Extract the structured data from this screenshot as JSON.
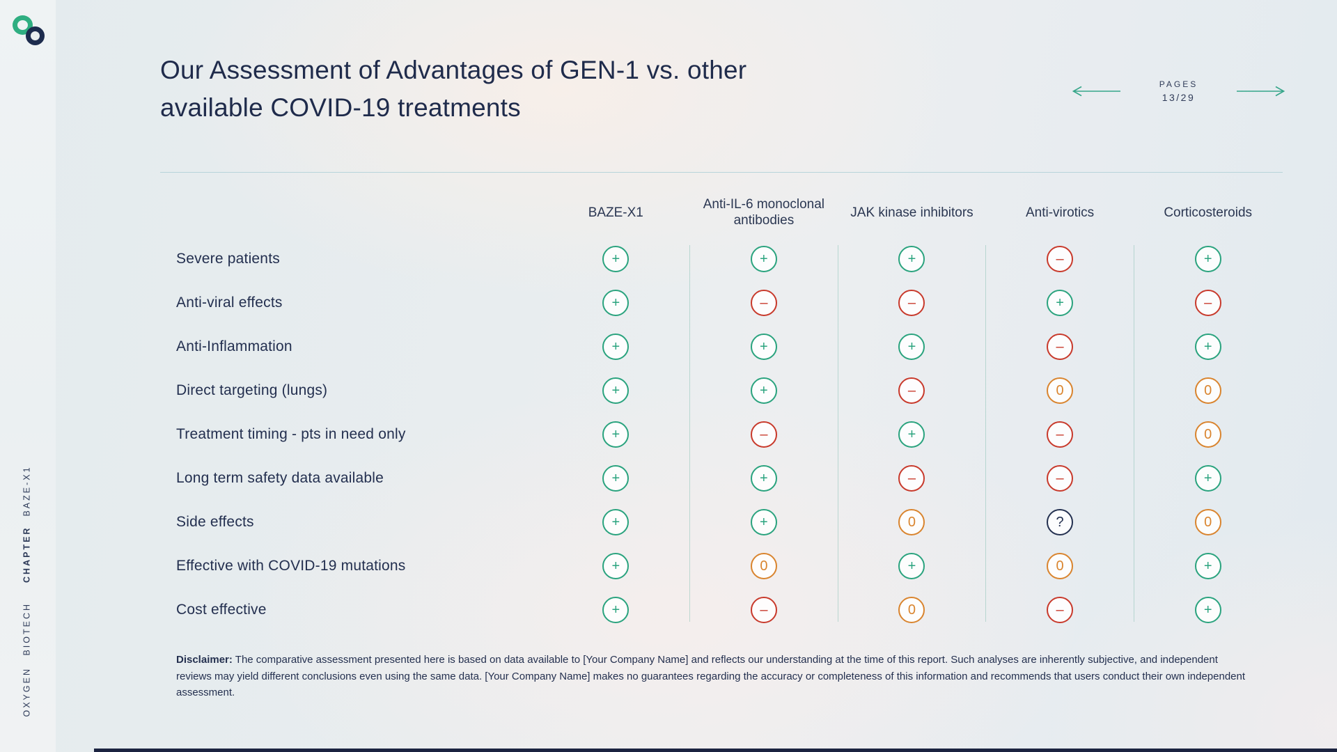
{
  "header": {
    "title_line1": "Our Assessment of Advantages of GEN-1 vs. other",
    "title_line2": "available COVID-19 treatments",
    "pages_label": "PAGES",
    "pages_value": "13/29"
  },
  "sidebar": {
    "company": "OXYGEN BIOTECH",
    "chapter_label": "CHAPTER",
    "chapter_value": "BAZE-X1"
  },
  "table": {
    "columns": [
      "BAZE-X1",
      "Anti-IL-6 monoclonal antibodies",
      "JAK kinase inhibitors",
      "Anti-virotics",
      "Corticosteroids"
    ],
    "legend": {
      "plus": {
        "glyph": "+",
        "color": "#2aa37e",
        "name": "advantage-plus"
      },
      "minus": {
        "glyph": "–",
        "color": "#c8392b",
        "name": "disadvantage-minus"
      },
      "zero": {
        "glyph": "0",
        "color": "#d9842e",
        "name": "neutral-zero"
      },
      "question": {
        "glyph": "?",
        "color": "#233050",
        "name": "unknown-question"
      }
    },
    "rows": [
      {
        "label": "Severe patients",
        "values": [
          "plus",
          "plus",
          "plus",
          "minus",
          "plus"
        ]
      },
      {
        "label": "Anti-viral effects",
        "values": [
          "plus",
          "minus",
          "minus",
          "plus",
          "minus"
        ]
      },
      {
        "label": "Anti-Inflammation",
        "values": [
          "plus",
          "plus",
          "plus",
          "minus",
          "plus"
        ]
      },
      {
        "label": "Direct targeting (lungs)",
        "values": [
          "plus",
          "plus",
          "minus",
          "zero",
          "zero"
        ]
      },
      {
        "label": "Treatment timing - pts in need only",
        "values": [
          "plus",
          "minus",
          "plus",
          "minus",
          "zero"
        ]
      },
      {
        "label": "Long term safety data available",
        "values": [
          "plus",
          "plus",
          "minus",
          "minus",
          "plus"
        ]
      },
      {
        "label": "Side effects",
        "values": [
          "plus",
          "plus",
          "zero",
          "question",
          "zero"
        ]
      },
      {
        "label": "Effective with COVID-19 mutations",
        "values": [
          "plus",
          "zero",
          "plus",
          "zero",
          "plus"
        ]
      },
      {
        "label": "Cost effective",
        "values": [
          "plus",
          "minus",
          "zero",
          "minus",
          "plus"
        ]
      }
    ]
  },
  "disclaimer": {
    "label": "Disclaimer:",
    "text": "The comparative assessment presented here is based on data available to [Your Company Name] and reflects our understanding at the time of this report.  Such analyses are inherently subjective, and independent reviews may yield different conclusions even using the same data.  [Your Company Name] makes no guarantees regarding the accuracy or completeness of this information and recommends that users conduct their own independent assessment."
  },
  "colors": {
    "accent_green": "#2aa37e",
    "navy": "#1f2b4b",
    "negative_red": "#c8392b",
    "neutral_orange": "#d9842e",
    "arrow_green": "#35a589"
  }
}
